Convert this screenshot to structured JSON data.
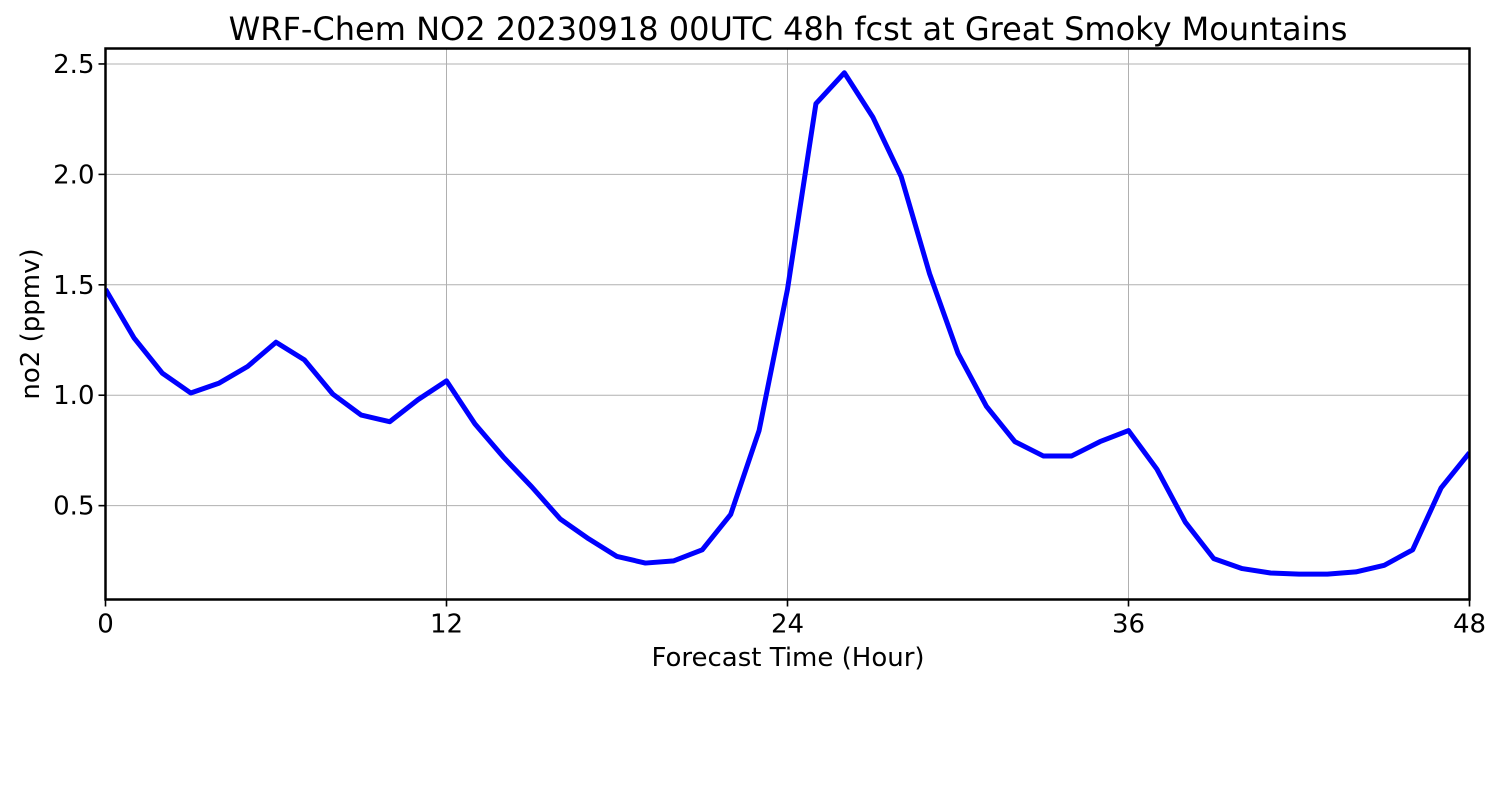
{
  "chart_data": {
    "type": "line",
    "title": "WRF-Chem NO2  20230918 00UTC 48h fcst at Great Smoky Mountains",
    "xlabel": "Forecast Time (Hour)",
    "ylabel": "no2  (ppmv)",
    "xlim": [
      0,
      48
    ],
    "ylim": [
      0.075,
      2.57
    ],
    "xticks": [
      0,
      12,
      24,
      36,
      48
    ],
    "xtick_labels": [
      "0",
      "12",
      "24",
      "36",
      "48"
    ],
    "yticks": [
      0.5,
      1.0,
      1.5,
      2.0,
      2.5
    ],
    "ytick_labels": [
      "0.5",
      "1.0",
      "1.5",
      "2.0",
      "2.5"
    ],
    "grid": true,
    "series": [
      {
        "color": "#0000ff",
        "x": [
          0,
          1,
          2,
          3,
          4,
          5,
          6,
          7,
          8,
          9,
          10,
          11,
          12,
          13,
          14,
          15,
          16,
          17,
          18,
          19,
          20,
          21,
          22,
          23,
          24,
          25,
          26,
          27,
          28,
          29,
          30,
          31,
          32,
          33,
          34,
          35,
          36,
          37,
          38,
          39,
          40,
          41,
          42,
          43,
          44,
          45,
          46,
          47,
          48
        ],
        "values": [
          1.48,
          1.26,
          1.1,
          1.01,
          1.055,
          1.13,
          1.24,
          1.16,
          1.005,
          0.91,
          0.88,
          0.98,
          1.065,
          0.87,
          0.72,
          0.585,
          0.44,
          0.35,
          0.27,
          0.24,
          0.25,
          0.3,
          0.46,
          0.84,
          1.48,
          2.32,
          2.46,
          2.26,
          1.99,
          1.55,
          1.19,
          0.95,
          0.79,
          0.725,
          0.725,
          0.79,
          0.84,
          0.665,
          0.425,
          0.26,
          0.215,
          0.195,
          0.19,
          0.19,
          0.2,
          0.23,
          0.3,
          0.58,
          0.74
        ]
      }
    ]
  },
  "colors": {
    "series_line": "#0000ff",
    "grid": "#b0b0b0",
    "axes": "#000000",
    "background": "#ffffff"
  }
}
